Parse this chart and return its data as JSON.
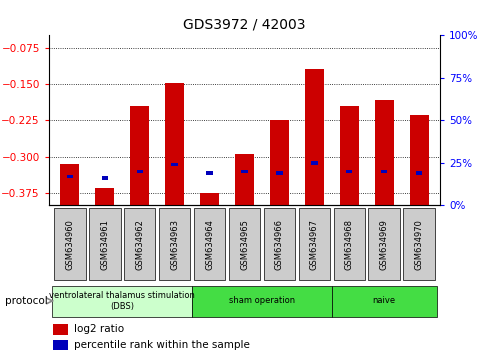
{
  "title": "GDS3972 / 42003",
  "samples": [
    "GSM634960",
    "GSM634961",
    "GSM634962",
    "GSM634963",
    "GSM634964",
    "GSM634965",
    "GSM634966",
    "GSM634967",
    "GSM634968",
    "GSM634969",
    "GSM634970"
  ],
  "log2_ratio": [
    -0.315,
    -0.365,
    -0.195,
    -0.148,
    -0.375,
    -0.295,
    -0.225,
    -0.12,
    -0.195,
    -0.183,
    -0.213
  ],
  "percentile_rank": [
    17,
    16,
    20,
    24,
    19,
    20,
    19,
    25,
    20,
    20,
    19
  ],
  "ylim_left": [
    -0.4,
    -0.05
  ],
  "ylim_right": [
    0,
    100
  ],
  "yticks_left": [
    -0.375,
    -0.3,
    -0.225,
    -0.15,
    -0.075
  ],
  "yticks_right": [
    0,
    25,
    50,
    75,
    100
  ],
  "bar_color_red": "#cc0000",
  "bar_color_blue": "#0000bb",
  "background_color": "#ffffff",
  "legend_log2": "log2 ratio",
  "legend_pct": "percentile rank within the sample",
  "protocol_label": "protocol",
  "bar_width": 0.55,
  "group_dbs_color": "#ccffcc",
  "group_sham_color": "#44dd44",
  "group_naive_color": "#44dd44",
  "sample_box_color": "#cccccc"
}
